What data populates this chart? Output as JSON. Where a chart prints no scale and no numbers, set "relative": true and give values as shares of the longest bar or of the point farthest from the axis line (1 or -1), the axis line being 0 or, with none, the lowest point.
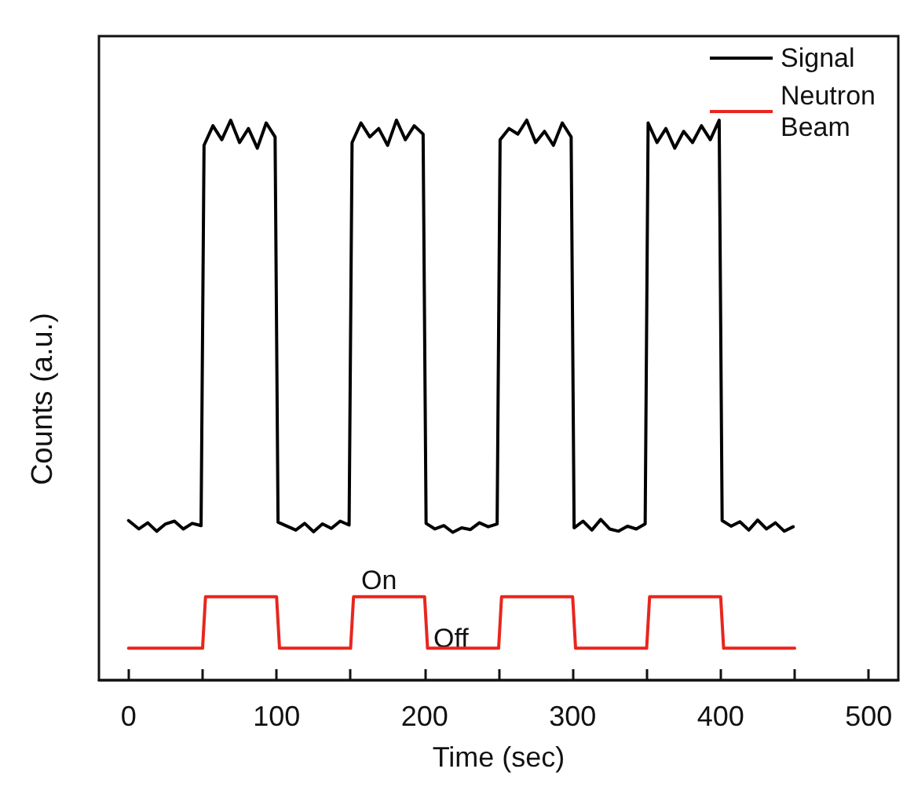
{
  "chart_data": {
    "type": "line",
    "relative": true,
    "xlabel": "Time (sec)",
    "ylabel": "Counts (a.u.)",
    "xlim": [
      -20,
      520
    ],
    "xticks": [
      0,
      {
        "value": 50,
        "label": null
      },
      100,
      {
        "value": 150,
        "label": null
      },
      200,
      {
        "value": 250,
        "label": null
      },
      300,
      {
        "value": 350,
        "label": null
      },
      400,
      {
        "value": 450,
        "label": null
      },
      500
    ],
    "tick_labels": "x",
    "grid": false,
    "legend": "top right",
    "marker": "none",
    "line_style": "solid",
    "annotations": [
      "On",
      "Off"
    ],
    "series": [
      {
        "name": "Signal",
        "color": "#000000",
        "x": [
          0,
          7,
          13,
          19,
          25,
          31,
          37,
          43,
          49,
          51,
          57,
          63,
          69,
          75,
          81,
          87,
          93,
          99,
          101,
          107,
          113,
          119,
          125,
          131,
          137,
          143,
          149,
          151,
          157,
          163,
          169,
          175,
          181,
          187,
          193,
          199,
          201,
          207,
          213,
          219,
          225,
          231,
          237,
          243,
          249,
          251,
          257,
          263,
          269,
          275,
          281,
          287,
          293,
          299,
          301,
          307,
          313,
          319,
          325,
          331,
          337,
          343,
          349,
          351,
          357,
          363,
          369,
          375,
          381,
          387,
          393,
          399,
          401,
          407,
          413,
          419,
          425,
          431,
          437,
          443,
          449
        ],
        "values": [
          0.285,
          0.27,
          0.281,
          0.266,
          0.279,
          0.284,
          0.27,
          0.28,
          0.276,
          0.955,
          0.99,
          0.965,
          1.0,
          0.96,
          0.985,
          0.95,
          0.995,
          0.97,
          0.282,
          0.275,
          0.268,
          0.28,
          0.265,
          0.279,
          0.271,
          0.284,
          0.277,
          0.96,
          0.995,
          0.97,
          0.985,
          0.955,
          1.0,
          0.965,
          0.99,
          0.975,
          0.28,
          0.27,
          0.276,
          0.264,
          0.272,
          0.269,
          0.281,
          0.274,
          0.279,
          0.965,
          0.985,
          0.975,
          1.0,
          0.96,
          0.98,
          0.955,
          0.995,
          0.97,
          0.272,
          0.284,
          0.268,
          0.287,
          0.27,
          0.266,
          0.275,
          0.27,
          0.279,
          0.995,
          0.96,
          0.985,
          0.95,
          0.98,
          0.96,
          0.99,
          0.965,
          1.0,
          0.285,
          0.275,
          0.283,
          0.268,
          0.286,
          0.27,
          0.281,
          0.266,
          0.274
        ]
      },
      {
        "name": "Neutron Beam",
        "color": "#e8261e",
        "x": [
          0,
          50,
          52,
          100,
          102,
          150,
          152,
          200,
          202,
          250,
          252,
          300,
          302,
          350,
          352,
          400,
          402,
          450
        ],
        "values": [
          0.057,
          0.057,
          0.149,
          0.149,
          0.057,
          0.057,
          0.149,
          0.149,
          0.057,
          0.057,
          0.149,
          0.149,
          0.057,
          0.057,
          0.149,
          0.149,
          0.057,
          0.057
        ]
      }
    ]
  }
}
